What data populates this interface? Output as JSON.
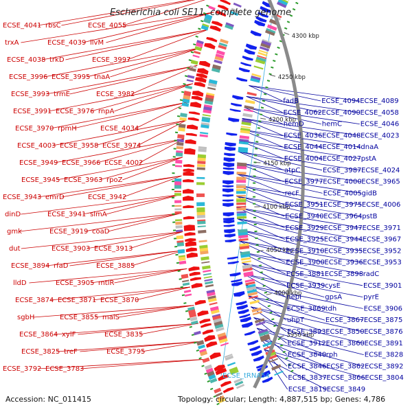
{
  "title": "Escherichia coli SE11, complete genome",
  "footer": {
    "accession": "Accession: NC_011415",
    "summary": "Topology: circular; Length: 4,887,515 bp; Genes: 4,786"
  },
  "colors": {
    "left_label": "#cc0000",
    "right_label": "#00009e",
    "rna_label": "#33aadd",
    "forward_arrow": "#ee1111",
    "reverse_arrow": "#1122ee",
    "backbone": "#8a8a8a",
    "tick": "#2a9a2a"
  },
  "kbp_markers": [
    {
      "label": "4300 kbp"
    },
    {
      "label": "4250 kbp"
    },
    {
      "label": "4200 kbp"
    },
    {
      "label": "4150 kbp"
    },
    {
      "label": "4100 kbp"
    },
    {
      "label": "4050 kbp"
    },
    {
      "label": "4000 kbp"
    },
    {
      "label": "3950 kbp"
    }
  ],
  "left_labels": [
    "ECSE_4041",
    "rbsC",
    "ECSE_4055",
    "trxA",
    "ECSE_4039",
    "ilvM",
    "ECSE_4038",
    "trkD",
    "ECSE_3997",
    "ECSE_3996",
    "ECSE_3995",
    "tnaA",
    "ECSE_3993",
    "trmE",
    "ECSE_3982",
    "ECSE_3991",
    "ECSE_3976",
    "rnpA",
    "ECSE_3970",
    "rpmH",
    "ECSE_4034",
    "ECSE_4003",
    "ECSE_3958",
    "ECSE_3974",
    "ECSE_3949",
    "ECSE_3966",
    "ECSE_4002",
    "ECSE_3945",
    "ECSE_3963",
    "rpoZ",
    "ECSE_3943",
    "emrD",
    "ECSE_3942",
    "dinD",
    "ECSE_3941",
    "slmA",
    "gmk",
    "ECSE_3919",
    "coaD",
    "dut",
    "ECSE_3903",
    "ECSE_3913",
    "ECSE_3894",
    "rfaD",
    "ECSE_3885",
    "lldD",
    "ECSE_3905",
    "mtlR",
    "ECSE_3874",
    "ECSE_3871",
    "ECSE_3870",
    "sgbH",
    "ECSE_3855",
    "malS",
    "ECSE_3864",
    "xylF",
    "ECSE_3835",
    "ECSE_3825",
    "treF",
    "ECSE_3795",
    "ECSE_3792",
    "ECSE_3783"
  ],
  "right_labels": [
    "fadB",
    "ECSE_4094",
    "ECSE_4089",
    "ECSE_4062",
    "ECSE_4090",
    "ECSE_4058",
    "hemD",
    "hemC",
    "ECSE_4046",
    "ECSE_4036",
    "ECSE_4048",
    "ECSE_4023",
    "ECSE_4044",
    "ECSE_4014",
    "dnaA",
    "ECSE_4004",
    "ECSE_4027",
    "pstA",
    "atpC",
    "ECSE_3987",
    "ECSE_4024",
    "ECSE_3977",
    "ECSE_4000",
    "ECSE_3965",
    "recF",
    "ECSE_4005",
    "gidB",
    "ECSE_3951",
    "ECSE_3975",
    "ECSE_4006",
    "ECSE_3940",
    "ECSE_3964",
    "pstB",
    "ECSE_3929",
    "ECSE_3947",
    "ECSE_3971",
    "ECSE_3925",
    "ECSE_3944",
    "ECSE_3967",
    "ECSE_3910",
    "ECSE_3935",
    "ECSE_3952",
    "ECSE_3900",
    "ECSE_3936",
    "ECSE_3953",
    "ECSE_3881",
    "ECSE_3898",
    "radC",
    "ECSE_3939",
    "cysE",
    "ECSE_3901",
    "nepI",
    "gpsA",
    "pyrE",
    "ECSE_3869",
    "tdh",
    "ECSE_3906",
    "uhpT",
    "ECSE_3867",
    "ECSE_3875",
    "ECSE_3893",
    "ECSE_3850",
    "ECSE_3876",
    "ECSE_3912",
    "ECSE_3860",
    "ECSE_3891",
    "ECSE_3840",
    "rph",
    "ECSE_3828",
    "ECSE_3846",
    "ECSE_3862",
    "ECSE_3892",
    "ECSE_3837",
    "ECSE_3866",
    "ECSE_3804",
    "ECSE_3819",
    "ECSE_3849"
  ],
  "rna_labels": [
    "ECSE_tRNA54"
  ]
}
